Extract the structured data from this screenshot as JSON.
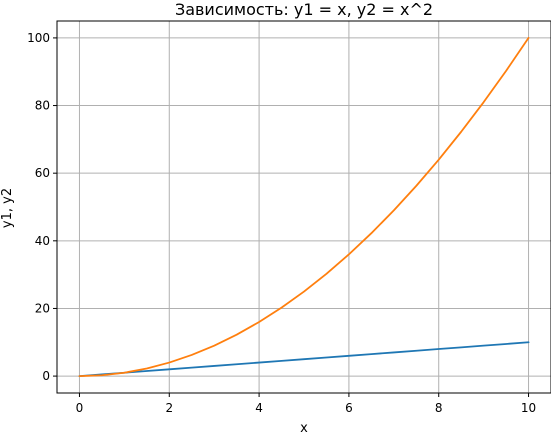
{
  "chart_data": {
    "type": "line",
    "title": "Зависимость: y1 = x, y2 = x^2",
    "xlabel": "x",
    "ylabel": "y1, y2",
    "xlim": [
      -0.5,
      10.5
    ],
    "ylim": [
      -5,
      105
    ],
    "x_ticks": [
      0,
      2,
      4,
      6,
      8,
      10
    ],
    "y_ticks": [
      0,
      20,
      40,
      60,
      80,
      100
    ],
    "grid": true,
    "legend": "none",
    "x": [
      0,
      0.5,
      1,
      1.5,
      2,
      2.5,
      3,
      3.5,
      4,
      4.5,
      5,
      5.5,
      6,
      6.5,
      7,
      7.5,
      8,
      8.5,
      9,
      9.5,
      10
    ],
    "series": [
      {
        "color": "#1f77b4",
        "values": [
          0,
          0.5,
          1,
          1.5,
          2,
          2.5,
          3,
          3.5,
          4,
          4.5,
          5,
          5.5,
          6,
          6.5,
          7,
          7.5,
          8,
          8.5,
          9,
          9.5,
          10
        ]
      },
      {
        "color": "#ff7f0e",
        "values": [
          0,
          0.25,
          1,
          2.25,
          4,
          6.25,
          9,
          12.25,
          16,
          20.25,
          25,
          30.25,
          36,
          42.25,
          49,
          56.25,
          64,
          72.25,
          81,
          90.25,
          100
        ]
      }
    ]
  }
}
